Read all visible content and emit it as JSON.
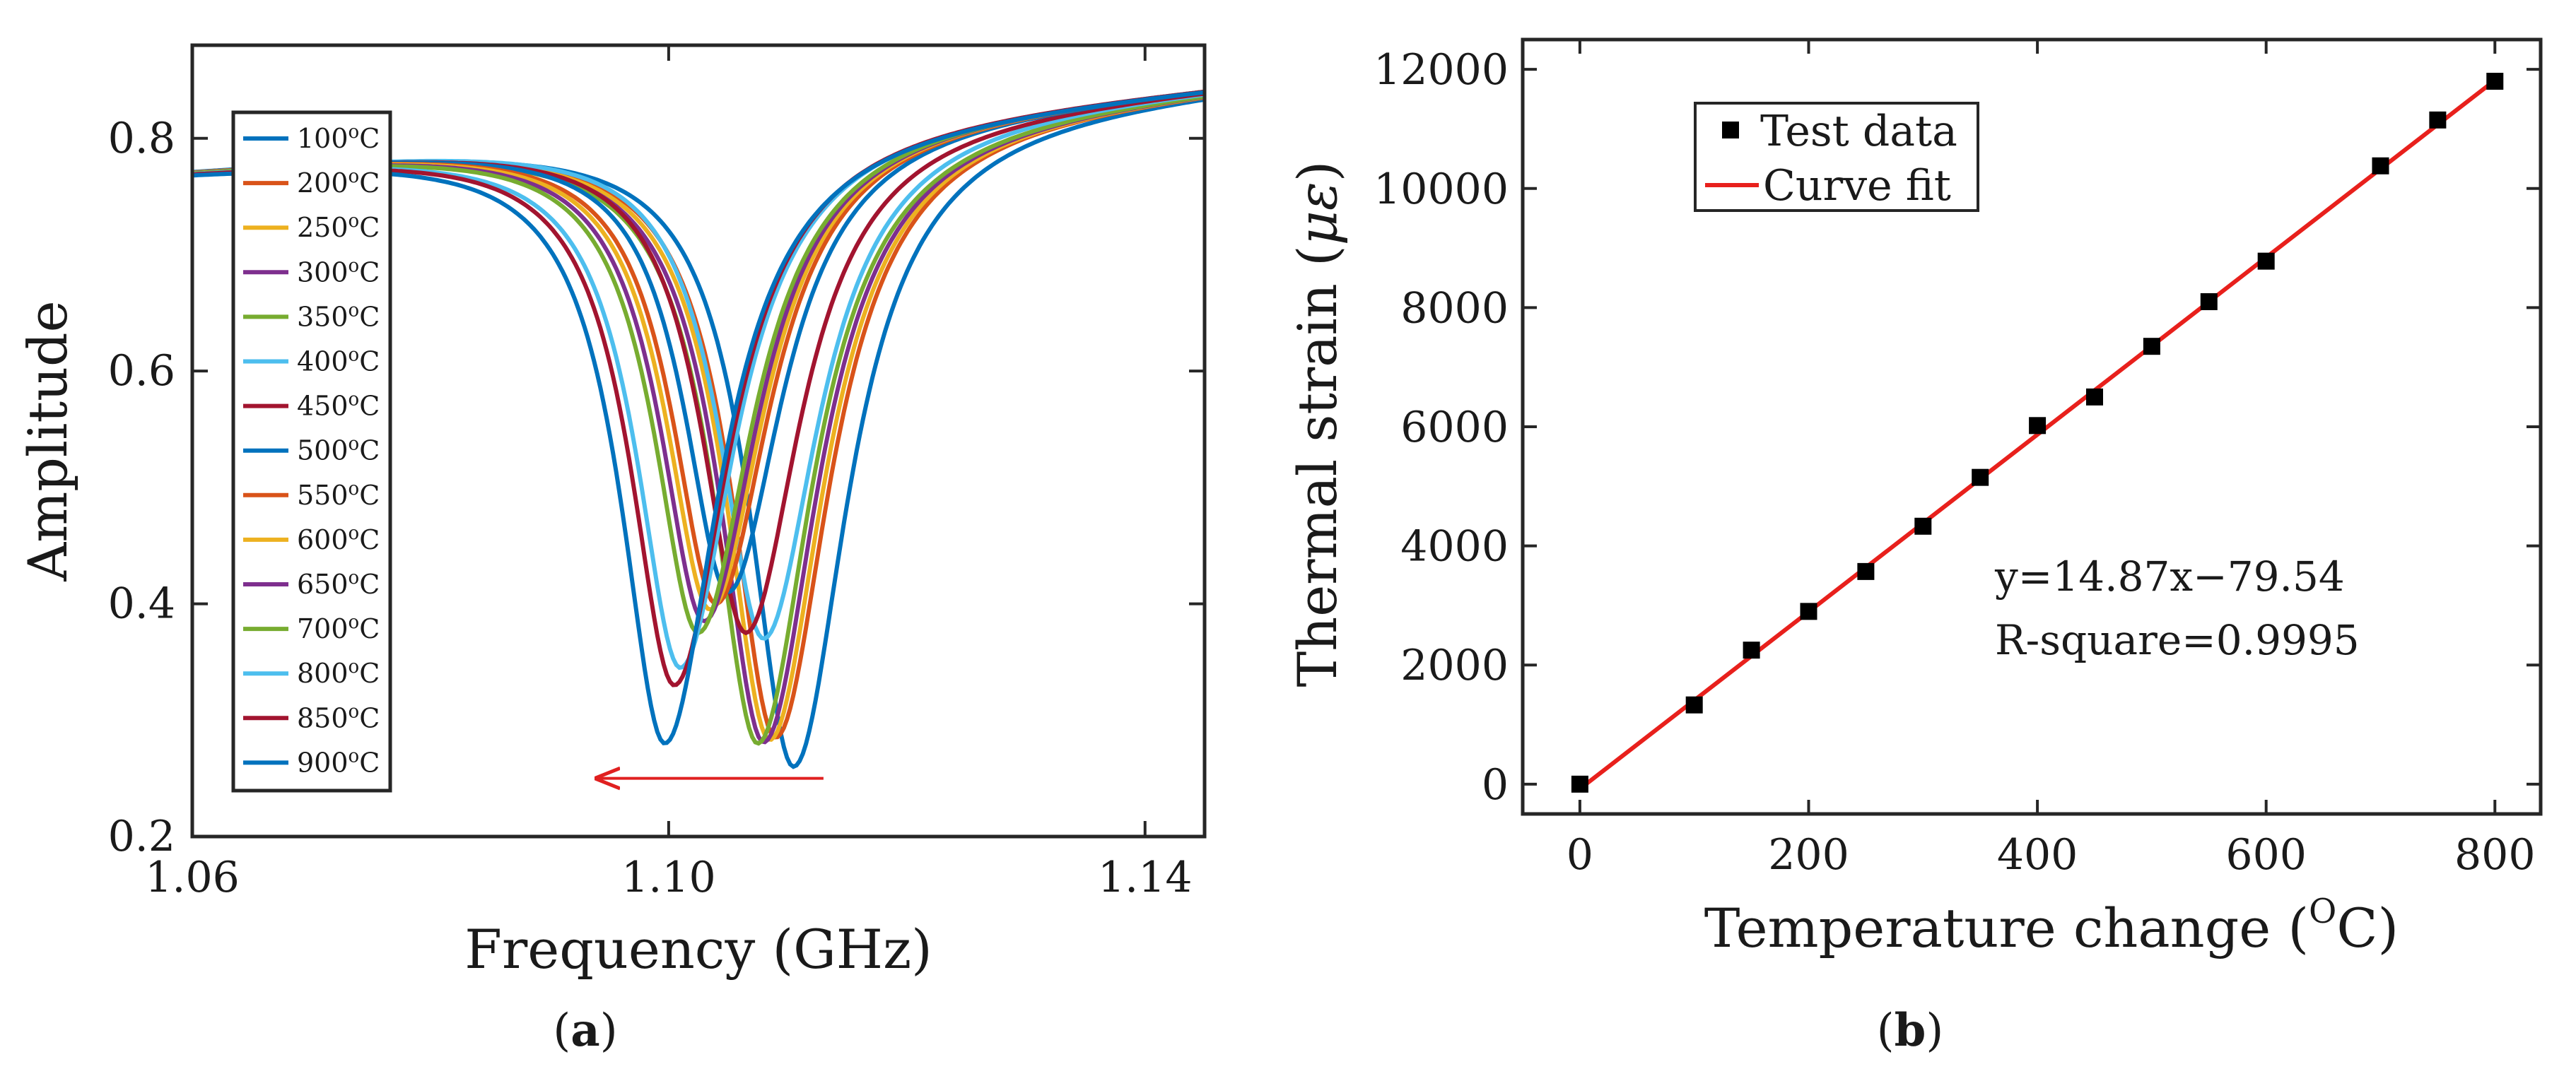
{
  "chart_data": [
    {
      "type": "line",
      "panel_caption": {
        "open": "(",
        "letter": "a",
        "close": ")"
      },
      "xlabel": "Frequency (GHz)",
      "ylabel": "Amplitude",
      "xlim": [
        1.06,
        1.145
      ],
      "ylim": [
        0.2,
        0.88
      ],
      "xticks": [
        1.06,
        1.1,
        1.14
      ],
      "xtick_labels": [
        "1.06",
        "1.10",
        "1.14"
      ],
      "yticks": [
        0.2,
        0.4,
        0.6,
        0.8
      ],
      "ytick_labels": [
        "0.2",
        "0.4",
        "0.6",
        "0.8"
      ],
      "legend_position": "upper-left",
      "legend_unit": "C",
      "series": [
        {
          "name": "100",
          "color": "#0072BD",
          "min_freq": 1.1105,
          "min_amp": 0.26
        },
        {
          "name": "200",
          "color": "#D95319",
          "min_freq": 1.109,
          "min_amp": 0.285
        },
        {
          "name": "250",
          "color": "#EDB120",
          "min_freq": 1.1085,
          "min_amp": 0.283
        },
        {
          "name": "300",
          "color": "#7E2F8E",
          "min_freq": 1.108,
          "min_amp": 0.281
        },
        {
          "name": "350",
          "color": "#77AC30",
          "min_freq": 1.1075,
          "min_amp": 0.28
        },
        {
          "name": "400",
          "color": "#4DBEEE",
          "min_freq": 1.108,
          "min_amp": 0.37
        },
        {
          "name": "450",
          "color": "#A2142F",
          "min_freq": 1.1065,
          "min_amp": 0.375
        },
        {
          "name": "500",
          "color": "#0072BD",
          "min_freq": 1.105,
          "min_amp": 0.41
        },
        {
          "name": "550",
          "color": "#D95319",
          "min_freq": 1.104,
          "min_amp": 0.4
        },
        {
          "name": "600",
          "color": "#EDB120",
          "min_freq": 1.1035,
          "min_amp": 0.395
        },
        {
          "name": "650",
          "color": "#7E2F8E",
          "min_freq": 1.103,
          "min_amp": 0.385
        },
        {
          "name": "700",
          "color": "#77AC30",
          "min_freq": 1.1025,
          "min_amp": 0.375
        },
        {
          "name": "800",
          "color": "#4DBEEE",
          "min_freq": 1.101,
          "min_amp": 0.345
        },
        {
          "name": "850",
          "color": "#A2142F",
          "min_freq": 1.1005,
          "min_amp": 0.33
        },
        {
          "name": "900",
          "color": "#0072BD",
          "min_freq": 1.0997,
          "min_amp": 0.28
        }
      ],
      "arrow": {
        "from_x": 1.113,
        "to_x": 1.094,
        "y": 0.25,
        "color": "#e02020"
      }
    },
    {
      "type": "scatter",
      "panel_caption": {
        "open": "(",
        "letter": "b",
        "close": ")"
      },
      "xlabel_text": "Temperature change (",
      "xlabel_sup": "O",
      "xlabel_tail": "C)",
      "ylabel": "Thermal strain (",
      "ylabel_mu": "με",
      "ylabel_tail": ")",
      "xlim": [
        -50,
        840
      ],
      "ylim": [
        -500,
        12500
      ],
      "xticks": [
        0,
        200,
        400,
        600,
        800
      ],
      "xtick_labels": [
        "0",
        "200",
        "400",
        "600",
        "800"
      ],
      "yticks": [
        0,
        2000,
        4000,
        6000,
        8000,
        10000,
        12000
      ],
      "ytick_labels": [
        "0",
        "2000",
        "4000",
        "6000",
        "8000",
        "10000",
        "12000"
      ],
      "legend": [
        {
          "label": "Test data",
          "marker": "square",
          "color": "#000000"
        },
        {
          "label": "Curve fit",
          "marker": "line",
          "color": "#e8201c"
        }
      ],
      "legend_position": "top-left",
      "test_data": {
        "x": [
          0,
          100,
          150,
          200,
          250,
          300,
          350,
          400,
          450,
          500,
          550,
          600,
          700,
          750,
          800
        ],
        "y": [
          0,
          1330,
          2250,
          2900,
          3570,
          4330,
          5150,
          6020,
          6500,
          7350,
          8100,
          8780,
          10380,
          11150,
          11800
        ]
      },
      "fit": {
        "slope": 14.87,
        "intercept": -79.54,
        "x_range": [
          0,
          800
        ],
        "color": "#e8201c"
      },
      "annotations": [
        "y=14.87x−79.54",
        "R-square=0.9995"
      ]
    }
  ]
}
